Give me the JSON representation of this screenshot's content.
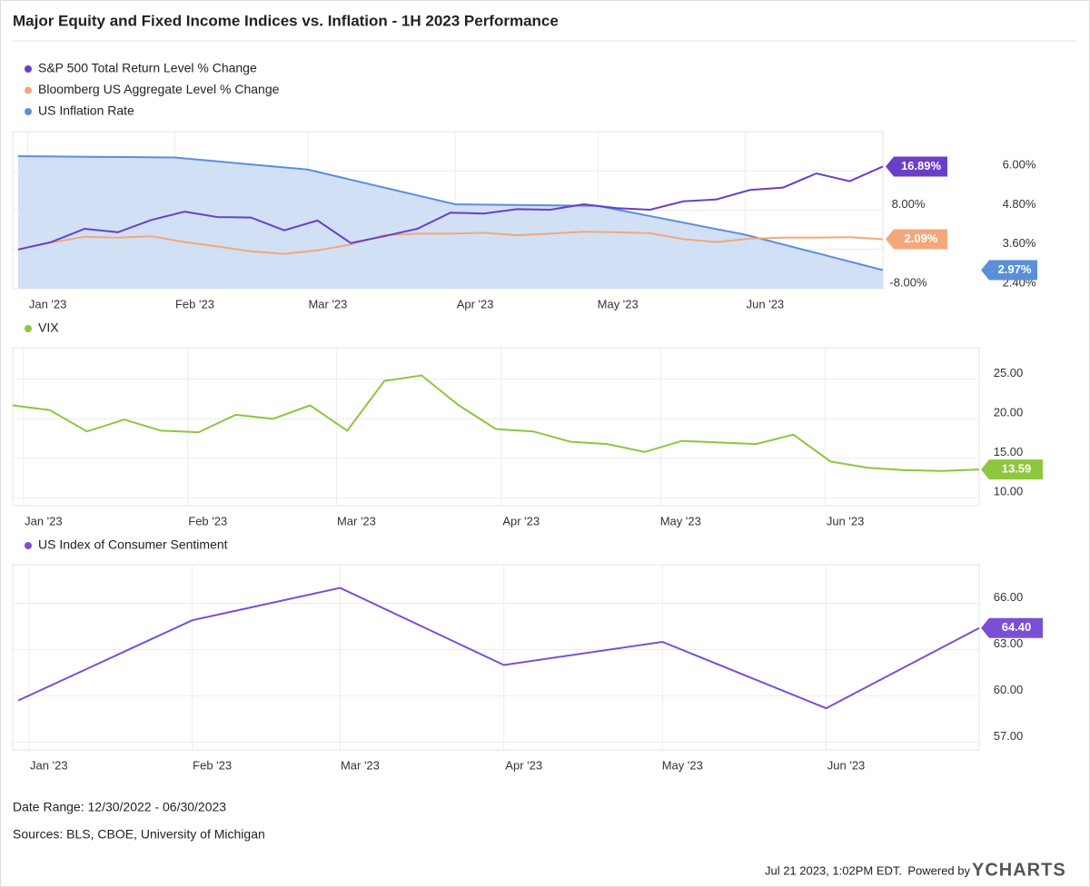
{
  "header": {
    "title": "Major Equity and Fixed Income Indices vs. Inflation - 1H 2023 Performance"
  },
  "chart_data": [
    {
      "type": "line",
      "xlim": [
        0,
        26
      ],
      "xticks": [
        {
          "value": 0.29,
          "label": "Jan '23"
        },
        {
          "value": 4.71,
          "label": "Feb '23"
        },
        {
          "value": 8.71,
          "label": "Mar '23"
        },
        {
          "value": 13.14,
          "label": "Apr '23"
        },
        {
          "value": 17.43,
          "label": "May '23"
        },
        {
          "value": 21.86,
          "label": "Jun '23"
        }
      ],
      "ylim": [
        -8,
        24
      ],
      "yticks": [
        {
          "value": 8,
          "label": "8.00%"
        },
        {
          "value": -8,
          "label": "-8.00%"
        }
      ],
      "y2lim": [
        2.4,
        7.2
      ],
      "y2ticks": [
        {
          "value": 6,
          "label": "6.00%"
        },
        {
          "value": 4.8,
          "label": "4.80%"
        },
        {
          "value": 3.6,
          "label": "3.60%"
        },
        {
          "value": 2.4,
          "label": "2.40%"
        }
      ],
      "grid": true,
      "series": [
        {
          "name": "S&P 500 Total Return Level % Change",
          "color": "#6a3fc8",
          "x": [
            0,
            1,
            2,
            3,
            4,
            5,
            6,
            7,
            8,
            9,
            10,
            11,
            12,
            13,
            14,
            15,
            16,
            17,
            18,
            19,
            20,
            21,
            22,
            23,
            24,
            25,
            26
          ],
          "values": [
            0,
            1.5,
            4.2,
            3.5,
            6.0,
            7.7,
            6.6,
            6.5,
            3.9,
            5.9,
            1.3,
            2.7,
            4.2,
            7.5,
            7.3,
            8.2,
            8.1,
            9.2,
            8.4,
            8.1,
            9.8,
            10.2,
            12.1,
            12.6,
            15.5,
            13.9,
            16.89
          ],
          "end_label": "16.89%"
        },
        {
          "name": "Bloomberg US Aggregate Level % Change",
          "color": "#f2a87b",
          "x": [
            0,
            1,
            2,
            3,
            4,
            5,
            6,
            7,
            8,
            9,
            10,
            11,
            12,
            13,
            14,
            15,
            16,
            17,
            18,
            19,
            20,
            21,
            22,
            23,
            24,
            25,
            26
          ],
          "values": [
            0,
            1.4,
            2.6,
            2.4,
            2.7,
            1.5,
            0.6,
            -0.4,
            -0.9,
            -0.2,
            1.0,
            2.9,
            3.2,
            3.2,
            3.4,
            2.9,
            3.2,
            3.6,
            3.5,
            3.3,
            2.1,
            1.5,
            2.2,
            2.4,
            2.4,
            2.5,
            2.09
          ],
          "end_label": "2.09%"
        },
        {
          "name": "US Inflation Rate",
          "color": "#5b8fd9",
          "axis": "y2",
          "fill": "#c9daf3",
          "x": [
            0,
            4.71,
            8.71,
            13.14,
            17.43,
            21.86,
            26
          ],
          "values": [
            6.45,
            6.41,
            6.04,
            4.98,
            4.93,
            4.05,
            2.97
          ],
          "end_label": "2.97%"
        }
      ]
    },
    {
      "type": "line",
      "xlim": [
        0,
        26
      ],
      "xticks": [
        {
          "value": 0.29,
          "label": "Jan '23"
        },
        {
          "value": 4.71,
          "label": "Feb '23"
        },
        {
          "value": 8.71,
          "label": "Mar '23"
        },
        {
          "value": 13.14,
          "label": "Apr '23"
        },
        {
          "value": 17.43,
          "label": "May '23"
        },
        {
          "value": 21.86,
          "label": "Jun '23"
        }
      ],
      "ylim": [
        9,
        29
      ],
      "yticks": [
        {
          "value": 25,
          "label": "25.00"
        },
        {
          "value": 20,
          "label": "20.00"
        },
        {
          "value": 15,
          "label": "15.00"
        },
        {
          "value": 10,
          "label": "10.00"
        }
      ],
      "grid": true,
      "series": [
        {
          "name": "VIX",
          "color": "#8dc63f",
          "x": [
            0,
            1,
            2,
            3,
            4,
            5,
            6,
            7,
            8,
            9,
            10,
            11,
            12,
            13,
            14,
            15,
            16,
            17,
            18,
            19,
            20,
            21,
            22,
            23,
            24,
            25,
            26
          ],
          "values": [
            21.7,
            21.1,
            18.4,
            19.9,
            18.5,
            18.3,
            20.5,
            20.0,
            21.7,
            18.5,
            24.8,
            25.5,
            21.7,
            18.7,
            18.4,
            17.1,
            16.8,
            15.8,
            17.2,
            17.0,
            16.8,
            18.0,
            14.6,
            13.8,
            13.5,
            13.4,
            13.59
          ],
          "end_label": "13.59"
        }
      ]
    },
    {
      "type": "line",
      "xlim": [
        0,
        26
      ],
      "xticks": [
        {
          "value": 0.29,
          "label": "Jan '23"
        },
        {
          "value": 4.71,
          "label": "Feb '23"
        },
        {
          "value": 8.71,
          "label": "Mar '23"
        },
        {
          "value": 13.14,
          "label": "Apr '23"
        },
        {
          "value": 17.43,
          "label": "May '23"
        },
        {
          "value": 21.86,
          "label": "Jun '23"
        }
      ],
      "ylim": [
        56.5,
        68.5
      ],
      "yticks": [
        {
          "value": 66,
          "label": "66.00"
        },
        {
          "value": 63,
          "label": "63.00"
        },
        {
          "value": 60,
          "label": "60.00"
        },
        {
          "value": 57,
          "label": "57.00"
        }
      ],
      "grid": true,
      "series": [
        {
          "name": "US Index of Consumer Sentiment",
          "color": "#7a4fd6",
          "x": [
            0,
            4.71,
            8.71,
            13.14,
            17.43,
            21.86,
            26
          ],
          "values": [
            59.7,
            64.9,
            67.0,
            62.0,
            63.5,
            59.2,
            64.4
          ],
          "end_label": "64.40"
        }
      ]
    }
  ],
  "footer": {
    "date_range": "Date Range: 12/30/2022 - 06/30/2023",
    "sources": "Sources: BLS, CBOE, University of Michigan",
    "timestamp": "Jul 21 2023, 1:02PM EDT.",
    "powered": "Powered by",
    "brand": "YCHARTS"
  }
}
